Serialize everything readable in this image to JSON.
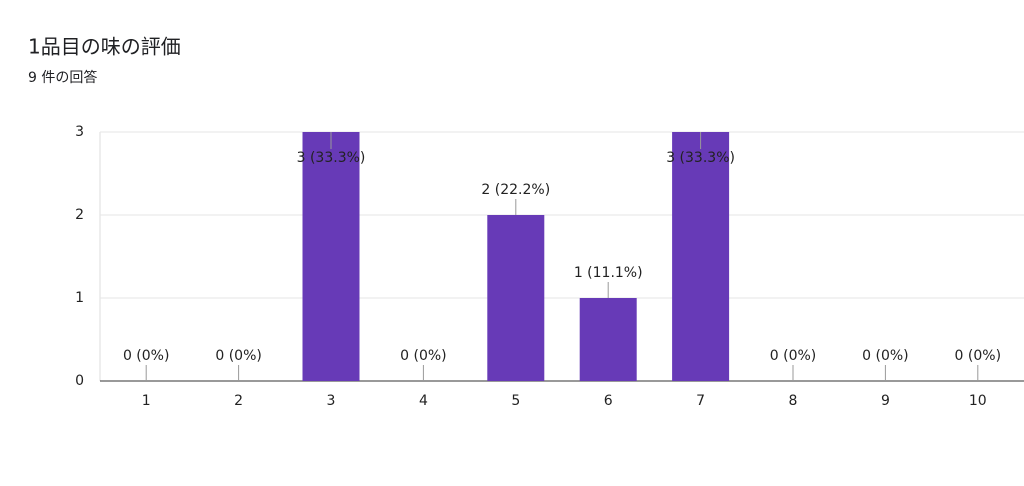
{
  "chart_data": {
    "type": "bar",
    "title": "1品目の味の評価",
    "subtitle": "9 件の回答",
    "categories": [
      "1",
      "2",
      "3",
      "4",
      "5",
      "6",
      "7",
      "8",
      "9",
      "10"
    ],
    "values": [
      0,
      0,
      3,
      0,
      2,
      1,
      3,
      0,
      0,
      0
    ],
    "value_labels": [
      "0 (0%)",
      "0 (0%)",
      "3 (33.3%)",
      "0 (0%)",
      "2 (22.2%)",
      "1 (11.1%)",
      "3 (33.3%)",
      "0 (0%)",
      "0 (0%)",
      "0 (0%)"
    ],
    "color": "#673ab7",
    "ylim": [
      0,
      3
    ],
    "yticks": [
      0,
      1,
      2,
      3
    ],
    "grid": true
  }
}
